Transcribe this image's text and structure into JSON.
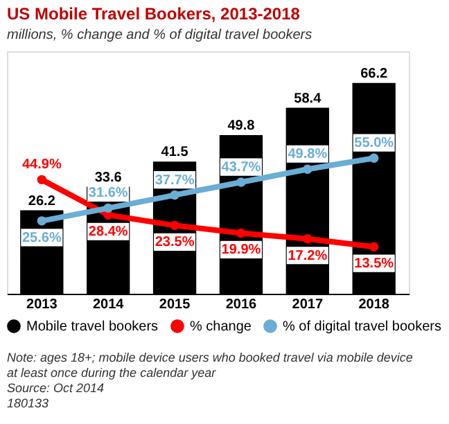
{
  "chart_data": {
    "type": "bar",
    "title": "US Mobile Travel Bookers, 2013-2018",
    "subtitle": "millions, % change and % of digital travel bookers",
    "categories": [
      "2013",
      "2014",
      "2015",
      "2016",
      "2017",
      "2018"
    ],
    "series": [
      {
        "name": "Mobile travel bookers",
        "color": "#000000",
        "values": [
          26.2,
          33.6,
          41.5,
          49.8,
          58.4,
          66.2
        ],
        "value_labels": [
          "26.2",
          "33.6",
          "41.5",
          "49.8",
          "58.4",
          "66.2"
        ]
      },
      {
        "name": "% change",
        "type": "line",
        "axis": "y2",
        "color": "#ff0000",
        "values": [
          44.9,
          28.4,
          23.5,
          19.9,
          17.2,
          13.5
        ],
        "value_labels": [
          "44.9%",
          "28.4%",
          "23.5%",
          "19.9%",
          "17.2%",
          "13.5%"
        ]
      },
      {
        "name": "% of digital travel bookers",
        "type": "line",
        "axis": "y2",
        "color": "#6aaed6",
        "values": [
          25.6,
          31.6,
          37.7,
          43.7,
          49.8,
          55.0
        ],
        "value_labels": [
          "25.6%",
          "31.6%",
          "37.7%",
          "43.7%",
          "49.8%",
          "55.0%"
        ]
      }
    ],
    "marker": "circle",
    "line_style": "solid",
    "grid": false,
    "legend": "bottom",
    "tick_labels": "x",
    "annotations": [
      "Note: ages 18+; mobile device users who booked travel via mobile device at least once during the calendar year",
      "Source: Oct 2014",
      "180133"
    ]
  }
}
